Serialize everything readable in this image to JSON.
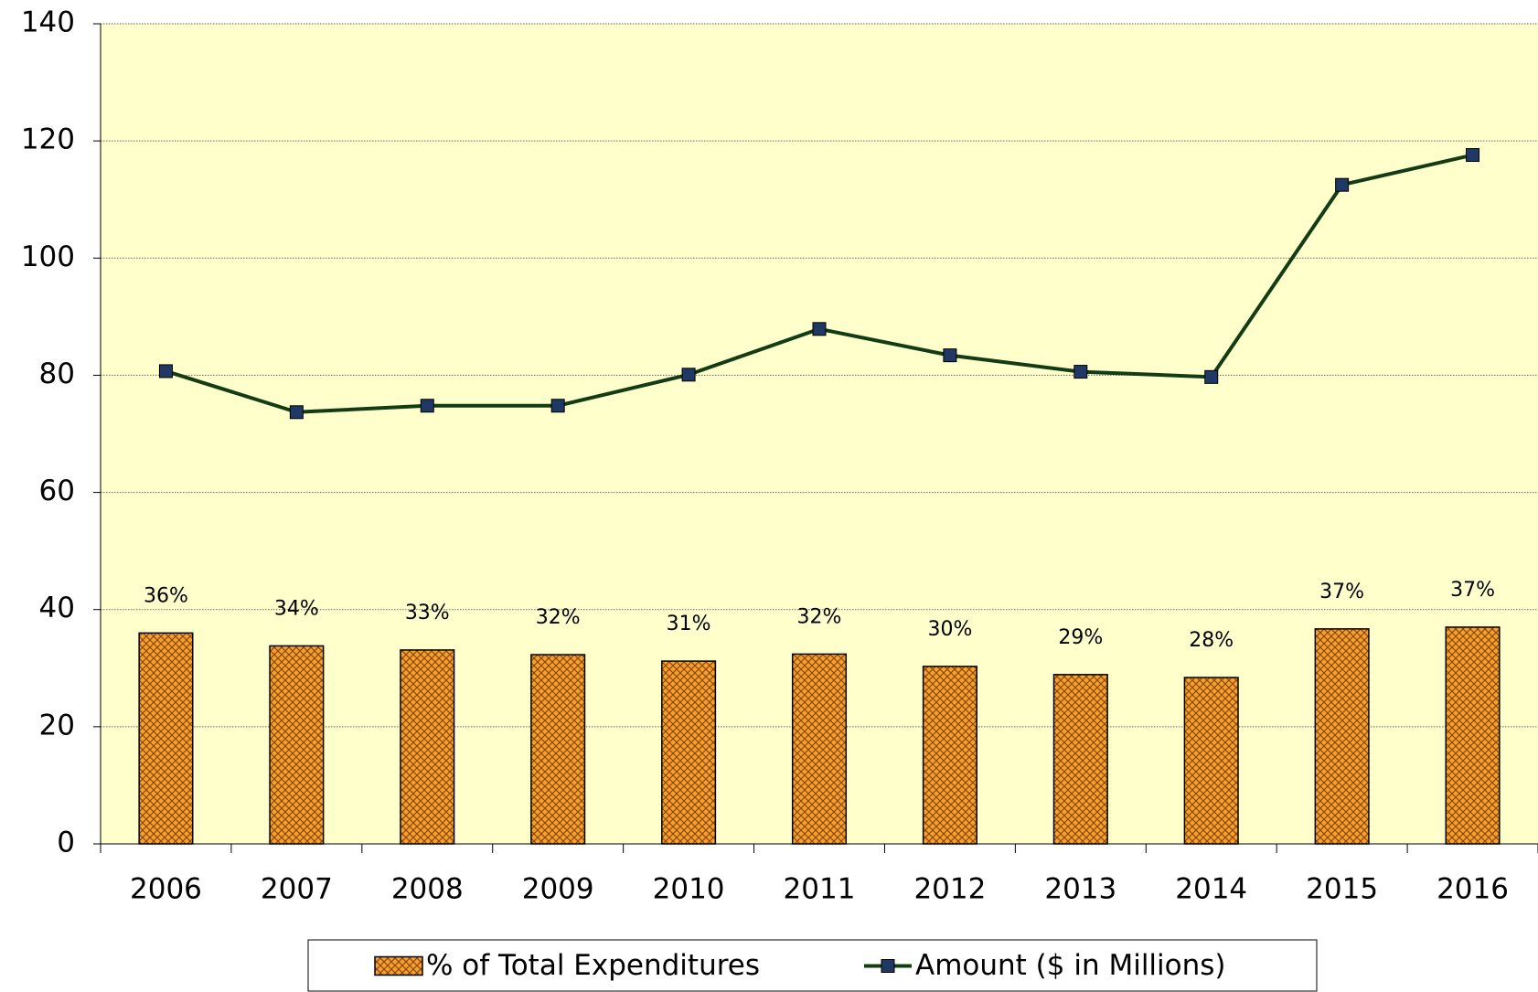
{
  "chart_data": {
    "type": "combo",
    "categories": [
      "2006",
      "2007",
      "2008",
      "2009",
      "2010",
      "2011",
      "2012",
      "2013",
      "2014",
      "2015",
      "2016"
    ],
    "series": [
      {
        "name": "% of Total Expenditures",
        "type": "bar",
        "color": "#f7a030",
        "values": [
          36,
          33.8,
          33.1,
          32.3,
          31.2,
          32.4,
          30.3,
          28.9,
          28.4,
          36.7,
          37
        ],
        "value_labels": [
          "36%",
          "34%",
          "33%",
          "32%",
          "31%",
          "32%",
          "30%",
          "29%",
          "28%",
          "37%",
          "37%"
        ]
      },
      {
        "name": "Amount ($ in Millions)",
        "type": "line",
        "color": "#143c14",
        "marker_color": "#1f3864",
        "values": [
          80.7,
          73.7,
          74.8,
          74.8,
          80.1,
          87.9,
          83.4,
          80.6,
          79.7,
          112.5,
          117.6
        ]
      }
    ],
    "ylim": [
      0,
      140
    ],
    "yticks": [
      0,
      20,
      40,
      60,
      80,
      100,
      120,
      140
    ],
    "grid": true,
    "plot_background": "#ffffcc",
    "legend": "bottom"
  }
}
